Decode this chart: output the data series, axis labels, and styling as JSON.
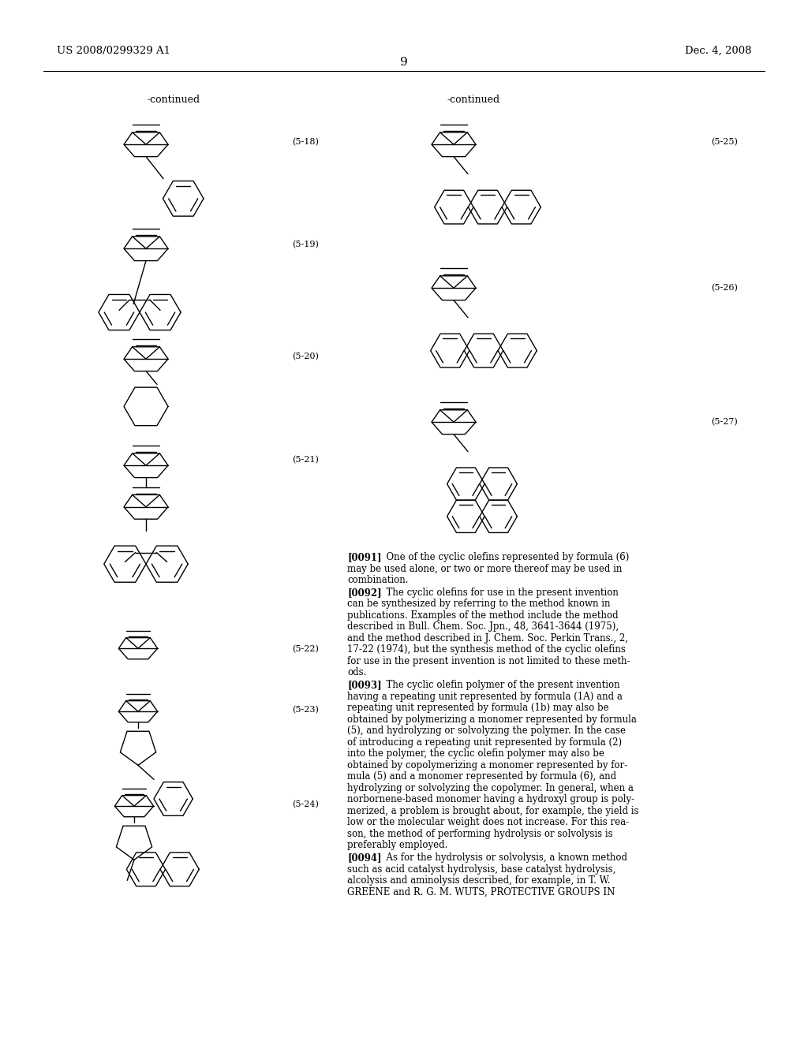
{
  "page_num": "9",
  "header_left": "US 2008/0299329 A1",
  "header_right": "Dec. 4, 2008",
  "bg_color": "#ffffff",
  "text_color": "#000000",
  "body_paragraphs": [
    {
      "tag": "[0091]",
      "lines": [
        "   One of the cyclic olefins represented by formula (6)",
        "may be used alone, or two or more thereof may be used in",
        "combination."
      ]
    },
    {
      "tag": "[0092]",
      "lines": [
        "   The cyclic olefins for use in the present invention",
        "can be synthesized by referring to the method known in",
        "publications. Examples of the method include the method",
        "described in Bull. Chem. Soc. Jpn., 48, 3641-3644 (1975),",
        "and the method described in J. Chem. Soc. Perkin Trans., 2,",
        "17-22 (1974), but the synthesis method of the cyclic olefins",
        "for use in the present invention is not limited to these meth-",
        "ods."
      ],
      "italic_words": [
        "Bull. Chem. Soc. Jpn.,",
        "J. Chem. Soc. Perkin Trans.,"
      ]
    },
    {
      "tag": "[0093]",
      "lines": [
        "   The cyclic olefin polymer of the present invention",
        "having a repeating unit represented by formula (1A) and a",
        "repeating unit represented by formula (1b) may also be",
        "obtained by polymerizing a monomer represented by formula",
        "(5), and hydrolyzing or solvolyzing the polymer. In the case",
        "of introducing a repeating unit represented by formula (2)",
        "into the polymer, the cyclic olefin polymer may also be",
        "obtained by copolymerizing a monomer represented by for-",
        "mula (5) and a monomer represented by formula (6), and",
        "hydrolyzing or solvolyzing the copolymer. In general, when a",
        "norbornene-based monomer having a hydroxyl group is poly-",
        "merized, a problem is brought about, for example, the yield is",
        "low or the molecular weight does not increase. For this rea-",
        "son, the method of performing hydrolysis or solvolysis is",
        "preferably employed."
      ]
    },
    {
      "tag": "[0094]",
      "lines": [
        "   As for the hydrolysis or solvolysis, a known method",
        "such as acid catalyst hydrolysis, base catalyst hydrolysis,",
        "alcolysis and aminolysis described, for example, in T. W.",
        "GREENE and R. G. M. WUTS, PROTECTIVE GROUPS IN"
      ],
      "italic_words": [
        "PROTECTIVE GROUPS IN"
      ]
    }
  ]
}
